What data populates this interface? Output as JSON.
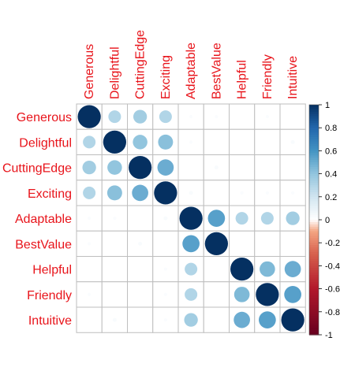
{
  "chart_data": {
    "type": "heatmap",
    "variables": [
      "Generous",
      "Delightful",
      "CuttingEdge",
      "Exciting",
      "Adaptable",
      "BestValue",
      "Helpful",
      "Friendly",
      "Intuitive"
    ],
    "matrix": [
      [
        1.0,
        0.3,
        0.35,
        0.3,
        0.02,
        0.02,
        0.0,
        0.02,
        0.0
      ],
      [
        0.3,
        1.0,
        0.4,
        0.42,
        0.02,
        0.0,
        0.0,
        0.0,
        0.03
      ],
      [
        0.35,
        0.4,
        1.0,
        0.5,
        0.0,
        0.03,
        0.0,
        0.0,
        0.0
      ],
      [
        0.3,
        0.42,
        0.5,
        1.0,
        0.03,
        0.0,
        0.02,
        0.02,
        0.02
      ],
      [
        0.02,
        0.02,
        0.0,
        0.03,
        1.0,
        0.55,
        0.3,
        0.3,
        0.35
      ],
      [
        0.02,
        0.0,
        0.03,
        0.0,
        0.55,
        1.0,
        0.0,
        0.0,
        0.0
      ],
      [
        0.0,
        0.0,
        0.0,
        0.02,
        0.3,
        0.0,
        1.0,
        0.45,
        0.5
      ],
      [
        0.02,
        0.0,
        0.0,
        0.02,
        0.3,
        0.0,
        0.45,
        1.0,
        0.55
      ],
      [
        0.0,
        0.03,
        0.0,
        0.02,
        0.35,
        0.0,
        0.5,
        0.55,
        1.0
      ]
    ],
    "colorbar": {
      "min": -1,
      "max": 1,
      "ticks": [
        "1",
        "0.8",
        "0.6",
        "0.4",
        "0.2",
        "0",
        "-0.2",
        "-0.4",
        "-0.6",
        "-0.8",
        "-1"
      ]
    },
    "label_color": "#E8141B",
    "colors": {
      "negative_end": "#67001F",
      "mid": "#FFFFFF",
      "positive_end": "#053061",
      "grid": "#BEBEBE"
    },
    "grid": true
  }
}
